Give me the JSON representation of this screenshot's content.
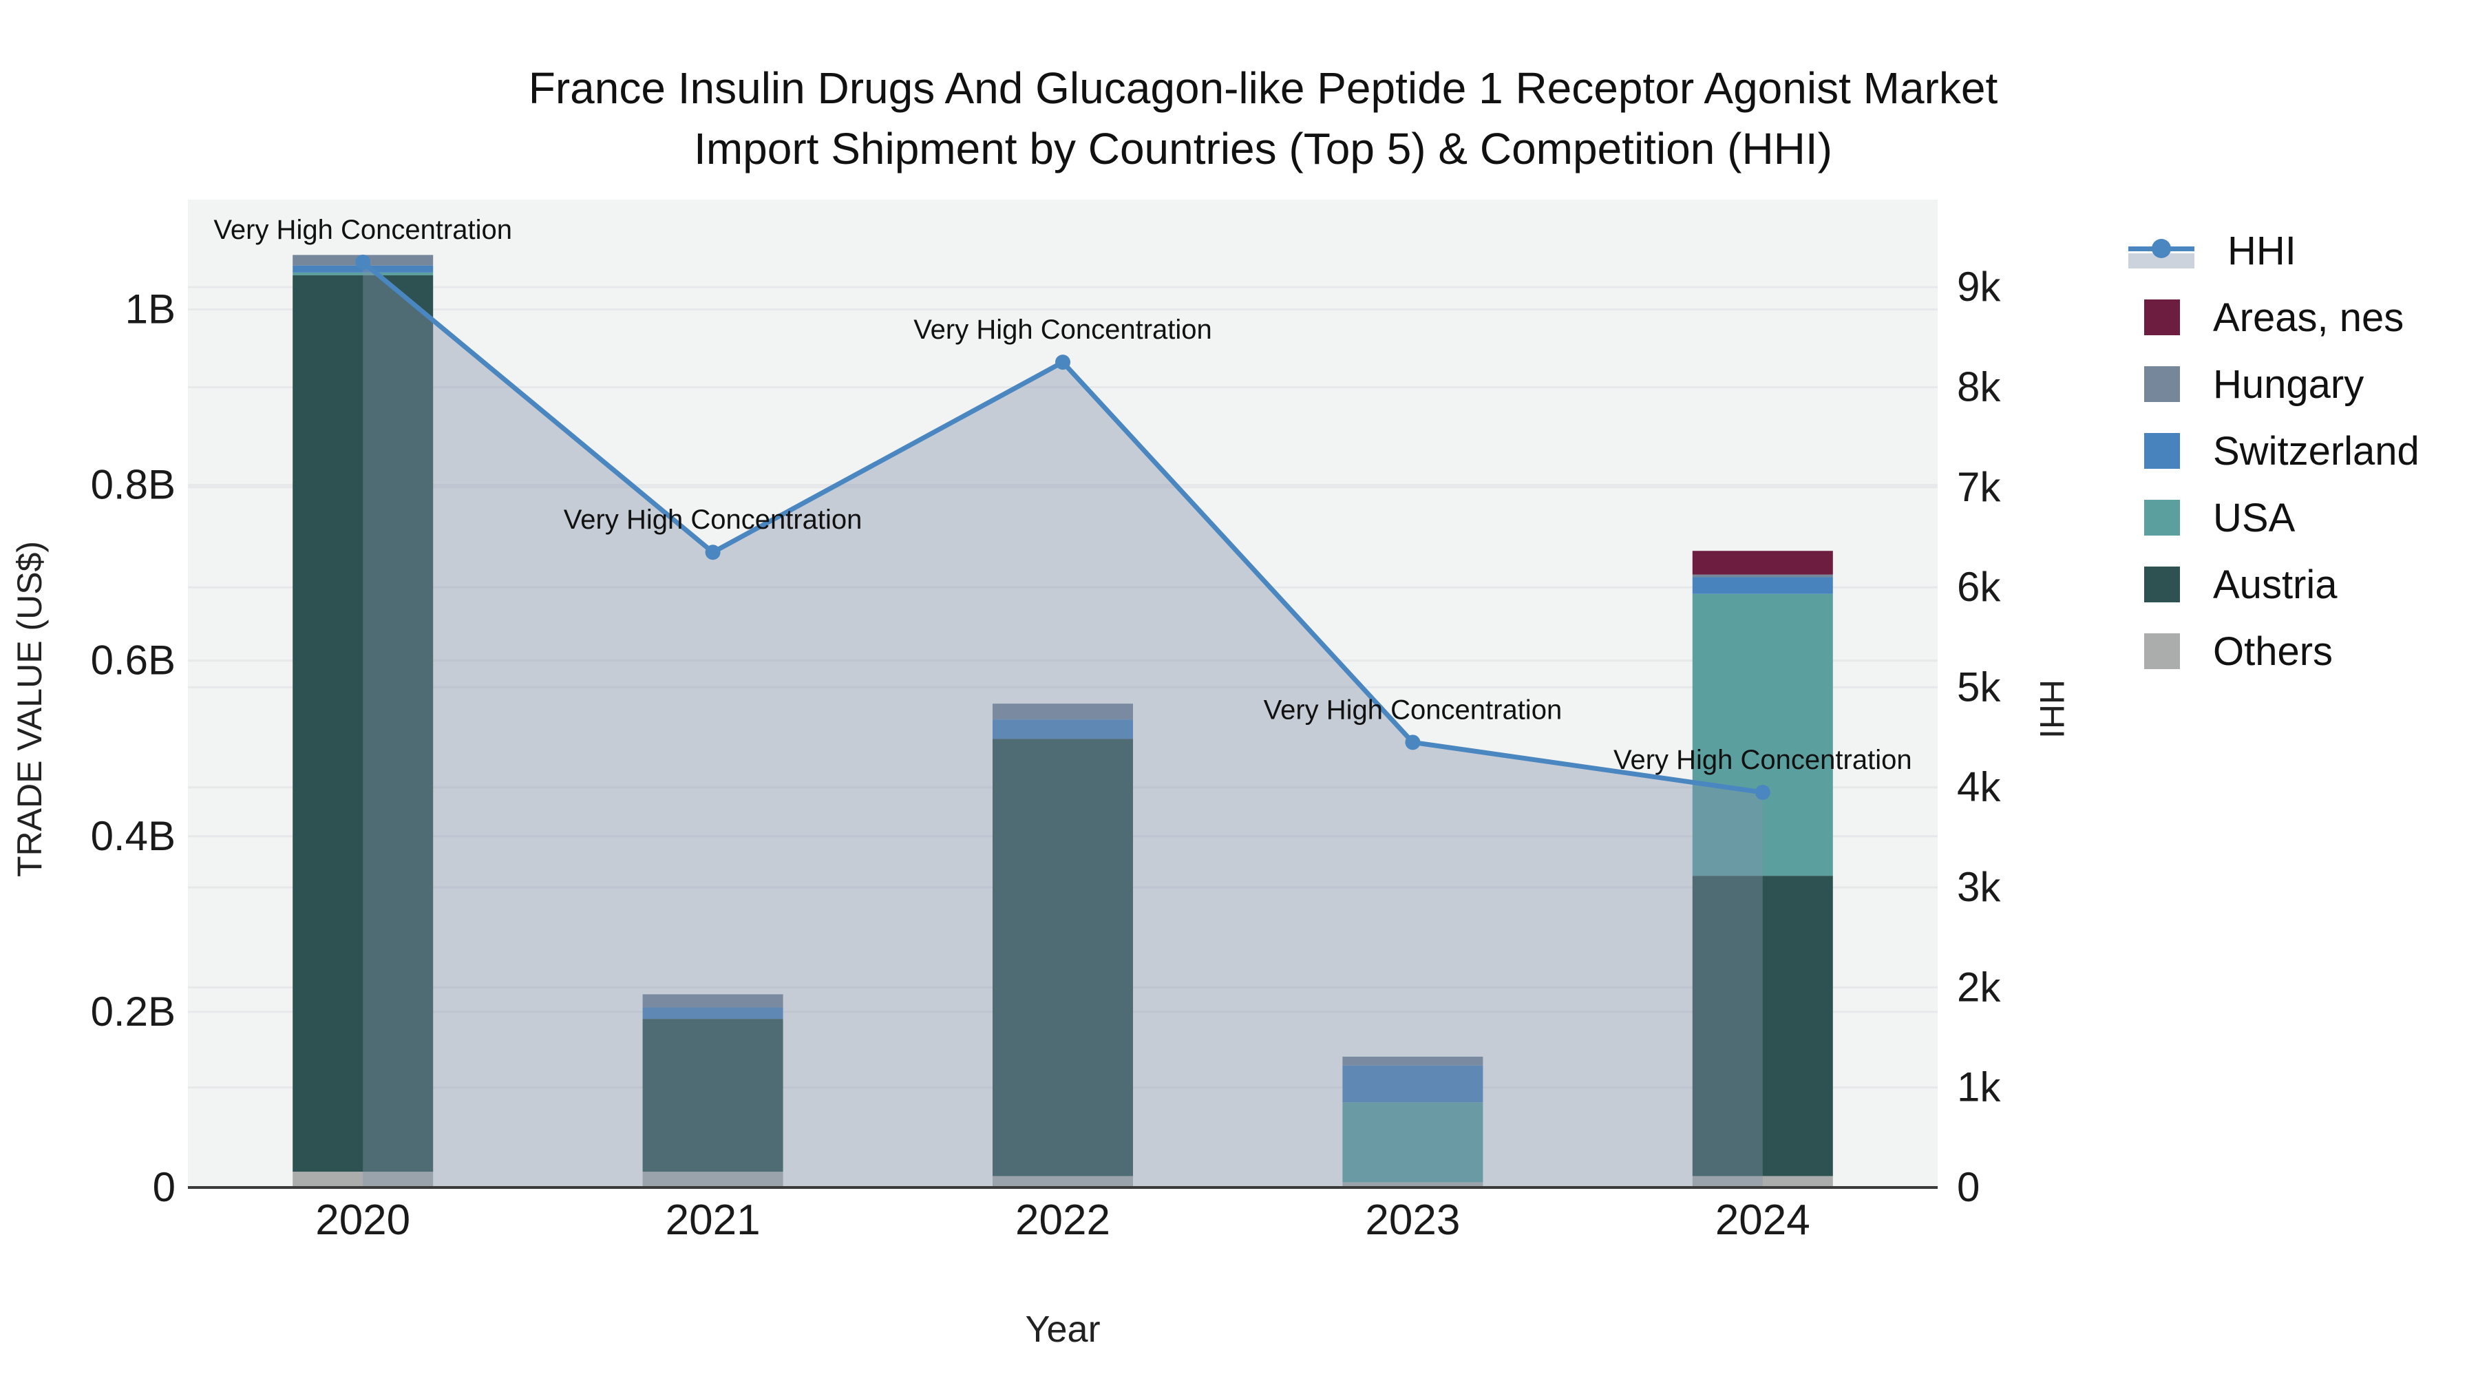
{
  "title": {
    "line1": "France Insulin Drugs And Glucagon-like Peptide 1 Receptor Agonist Market",
    "line2": "Import Shipment by Countries (Top 5) & Competition (HHI)"
  },
  "chart_data": {
    "type": "bar",
    "subtype": "stacked-bars-with-line",
    "categories": [
      "2020",
      "2021",
      "2022",
      "2023",
      "2024"
    ],
    "series": [
      {
        "name": "Others",
        "color": "#abadad",
        "values_busd": [
          0.018,
          0.018,
          0.013,
          0.006,
          0.013
        ]
      },
      {
        "name": "Austria",
        "color": "#2e5251",
        "values_busd": [
          1.021,
          0.174,
          0.498,
          0.0,
          0.342
        ]
      },
      {
        "name": "USA",
        "color": "#5ba09e",
        "values_busd": [
          0.003,
          0.0,
          0.0,
          0.091,
          0.321
        ]
      },
      {
        "name": "Switzerland",
        "color": "#4983bd",
        "values_busd": [
          0.008,
          0.013,
          0.022,
          0.042,
          0.019
        ]
      },
      {
        "name": "Hungary",
        "color": "#76879b",
        "values_busd": [
          0.012,
          0.015,
          0.018,
          0.01,
          0.003
        ]
      },
      {
        "name": "Areas, nes",
        "color": "#6d1d3f",
        "values_busd": [
          0.0,
          0.0,
          0.0,
          0.0,
          0.027
        ]
      }
    ],
    "line_series": {
      "name": "HHI",
      "values": [
        9250,
        6350,
        8250,
        4450,
        3950
      ],
      "color": "#4a86c0",
      "fill_color": "rgba(129,144,169,0.40)",
      "annotation_text": "Very High Concentration"
    },
    "xlabel": "Year",
    "ylabel_left": "TRADE VALUE (US$)",
    "ylabel_right": "HHI",
    "y_left_ticks": {
      "values": [
        0,
        0.2,
        0.4,
        0.6,
        0.8,
        1.0
      ],
      "labels": [
        "0",
        "0.2B",
        "0.4B",
        "0.6B",
        "0.8B",
        "1B"
      ]
    },
    "y_right_ticks": {
      "values": [
        0,
        1000,
        2000,
        3000,
        4000,
        5000,
        6000,
        7000,
        8000,
        9000
      ],
      "labels": [
        "0",
        "1k",
        "2k",
        "3k",
        "4k",
        "5k",
        "6k",
        "7k",
        "8k",
        "9k"
      ]
    },
    "ylim_left_busd": [
      0,
      1.125
    ],
    "ylim_right": [
      0,
      9875
    ],
    "grid": true,
    "legend_position": "right"
  },
  "legend": {
    "items": [
      {
        "label": "HHI",
        "type": "line",
        "color": "#4a86c0",
        "fill": "rgba(129,144,169,0.40)"
      },
      {
        "label": "Areas, nes",
        "type": "swatch",
        "color": "#6d1d3f"
      },
      {
        "label": "Hungary",
        "type": "swatch",
        "color": "#76879b"
      },
      {
        "label": "Switzerland",
        "type": "swatch",
        "color": "#4983bd"
      },
      {
        "label": "USA",
        "type": "swatch",
        "color": "#5ba09e"
      },
      {
        "label": "Austria",
        "type": "swatch",
        "color": "#2e5251"
      },
      {
        "label": "Others",
        "type": "swatch",
        "color": "#abadad"
      }
    ]
  },
  "style": {
    "plot_bg": "#f2f3f3",
    "gridline": "#e7e8ea",
    "axis_line": "#3a3a3a",
    "tick_color": "#1a1a1a",
    "annotation_color": "#111111"
  }
}
